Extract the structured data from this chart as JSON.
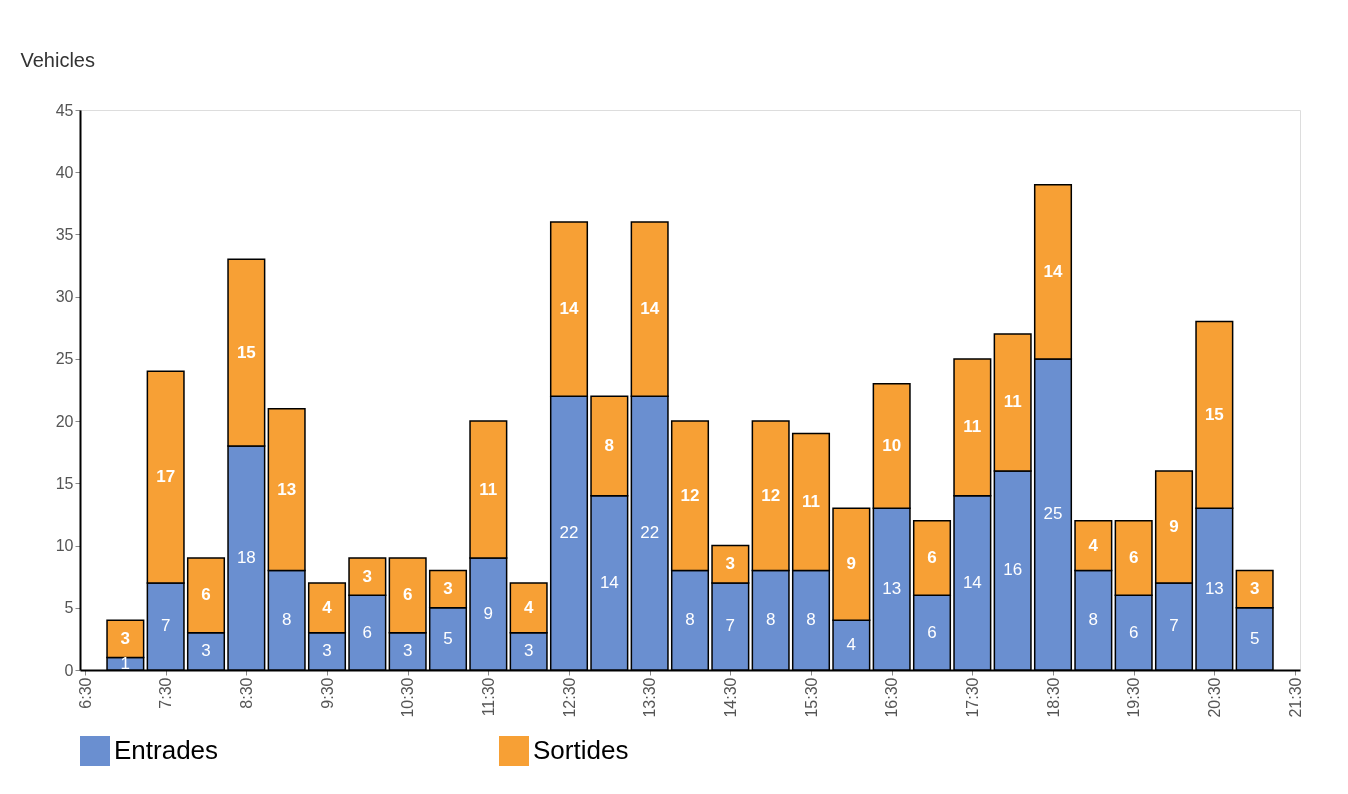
{
  "chart_data": {
    "type": "bar",
    "stacked": true,
    "ylabel": "Vehicles",
    "x": [
      7,
      7.5,
      8,
      8.5,
      9,
      9.5,
      10,
      10.5,
      11,
      11.5,
      12,
      12.5,
      13,
      13.5,
      14,
      14.5,
      15,
      15.5,
      16,
      16.5,
      17,
      17.5,
      18,
      18.5,
      19,
      19.5,
      20,
      20.5,
      21
    ],
    "series": [
      {
        "name": "Entrades",
        "color": "#6a8fd0",
        "values": [
          1,
          7,
          3,
          18,
          8,
          3,
          6,
          3,
          5,
          9,
          3,
          22,
          14,
          22,
          8,
          7,
          8,
          8,
          4,
          13,
          6,
          14,
          16,
          25,
          8,
          6,
          7,
          13,
          5
        ]
      },
      {
        "name": "Sortides",
        "color": "#f7a035",
        "values": [
          3,
          17,
          6,
          15,
          13,
          4,
          3,
          6,
          3,
          11,
          4,
          14,
          8,
          14,
          12,
          3,
          12,
          11,
          9,
          10,
          6,
          11,
          11,
          14,
          4,
          6,
          9,
          15,
          3
        ]
      }
    ],
    "xlim": [
      6.5,
      21.5
    ],
    "xticks": [
      {
        "value": 6.5,
        "label": "6:30"
      },
      {
        "value": 7.5,
        "label": "7:30"
      },
      {
        "value": 8.5,
        "label": "8:30"
      },
      {
        "value": 9.5,
        "label": "9:30"
      },
      {
        "value": 10.5,
        "label": "10:30"
      },
      {
        "value": 11.5,
        "label": "11:30"
      },
      {
        "value": 12.5,
        "label": "12:30"
      },
      {
        "value": 13.5,
        "label": "13:30"
      },
      {
        "value": 14.5,
        "label": "14:30"
      },
      {
        "value": 15.5,
        "label": "15:30"
      },
      {
        "value": 16.5,
        "label": "16:30"
      },
      {
        "value": 17.5,
        "label": "17:30"
      },
      {
        "value": 18.5,
        "label": "18:30"
      },
      {
        "value": 19.5,
        "label": "19:30"
      },
      {
        "value": 20.5,
        "label": "20:30"
      },
      {
        "value": 21.5,
        "label": "21:30"
      }
    ],
    "ylim": [
      0,
      45
    ],
    "yticks": [
      0,
      5,
      10,
      15,
      20,
      25,
      30,
      35,
      40,
      45
    ],
    "data_labels": true,
    "legend": "bottom",
    "grid": false
  }
}
